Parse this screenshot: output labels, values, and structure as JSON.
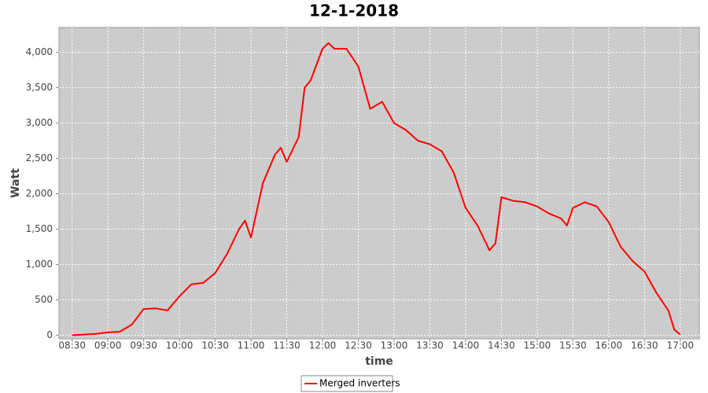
{
  "chart_data": {
    "type": "line",
    "title": "12-1-2018",
    "x_label": "time",
    "y_label": "Watt",
    "x": [
      "08:30",
      "08:40",
      "08:50",
      "09:00",
      "09:10",
      "09:20",
      "09:30",
      "09:40",
      "09:50",
      "10:00",
      "10:10",
      "10:20",
      "10:30",
      "10:40",
      "10:50",
      "10:55",
      "11:00",
      "11:10",
      "11:20",
      "11:25",
      "11:30",
      "11:40",
      "11:45",
      "11:50",
      "12:00",
      "12:05",
      "12:10",
      "12:20",
      "12:30",
      "12:40",
      "12:50",
      "13:00",
      "13:10",
      "13:20",
      "13:30",
      "13:40",
      "13:50",
      "14:00",
      "14:10",
      "14:20",
      "14:25",
      "14:30",
      "14:40",
      "14:50",
      "15:00",
      "15:10",
      "15:20",
      "15:25",
      "15:30",
      "15:40",
      "15:50",
      "16:00",
      "16:10",
      "16:20",
      "16:30",
      "16:40",
      "16:50",
      "16:55",
      "17:00"
    ],
    "series": [
      {
        "name": "Merged inverters",
        "color": "#ff0000",
        "values": [
          0,
          10,
          20,
          40,
          50,
          150,
          370,
          380,
          350,
          550,
          720,
          740,
          880,
          1150,
          1500,
          1620,
          1380,
          2150,
          2550,
          2650,
          2450,
          2800,
          3500,
          3600,
          4050,
          4130,
          4050,
          4050,
          3800,
          3200,
          3300,
          3000,
          2900,
          2750,
          2700,
          2600,
          2300,
          1800,
          1550,
          1200,
          1300,
          1950,
          1900,
          1880,
          1820,
          1720,
          1650,
          1550,
          1800,
          1880,
          1820,
          1600,
          1250,
          1050,
          900,
          600,
          350,
          80,
          10
        ]
      }
    ],
    "xlim": [
      "08:19",
      "17:16"
    ],
    "xticks": [
      "08:30",
      "09:00",
      "09:30",
      "10:00",
      "10:30",
      "11:00",
      "11:30",
      "12:00",
      "12:30",
      "13:00",
      "13:30",
      "14:00",
      "14:30",
      "15:00",
      "15:30",
      "16:00",
      "16:30",
      "17:00"
    ],
    "ylim": [
      -50,
      4350
    ],
    "yticks": [
      0,
      {
        "value": 500,
        "label": "500"
      },
      {
        "value": 1000,
        "label": "1,000"
      },
      {
        "value": 1500,
        "label": "1,500"
      },
      {
        "value": 2000,
        "label": "2,000"
      },
      {
        "value": 2500,
        "label": "2,500"
      },
      {
        "value": 3000,
        "label": "3,000"
      },
      {
        "value": 3500,
        "label": "3,500"
      },
      {
        "value": 4000,
        "label": "4,000"
      }
    ],
    "grid": true,
    "background": "#cccccc"
  }
}
